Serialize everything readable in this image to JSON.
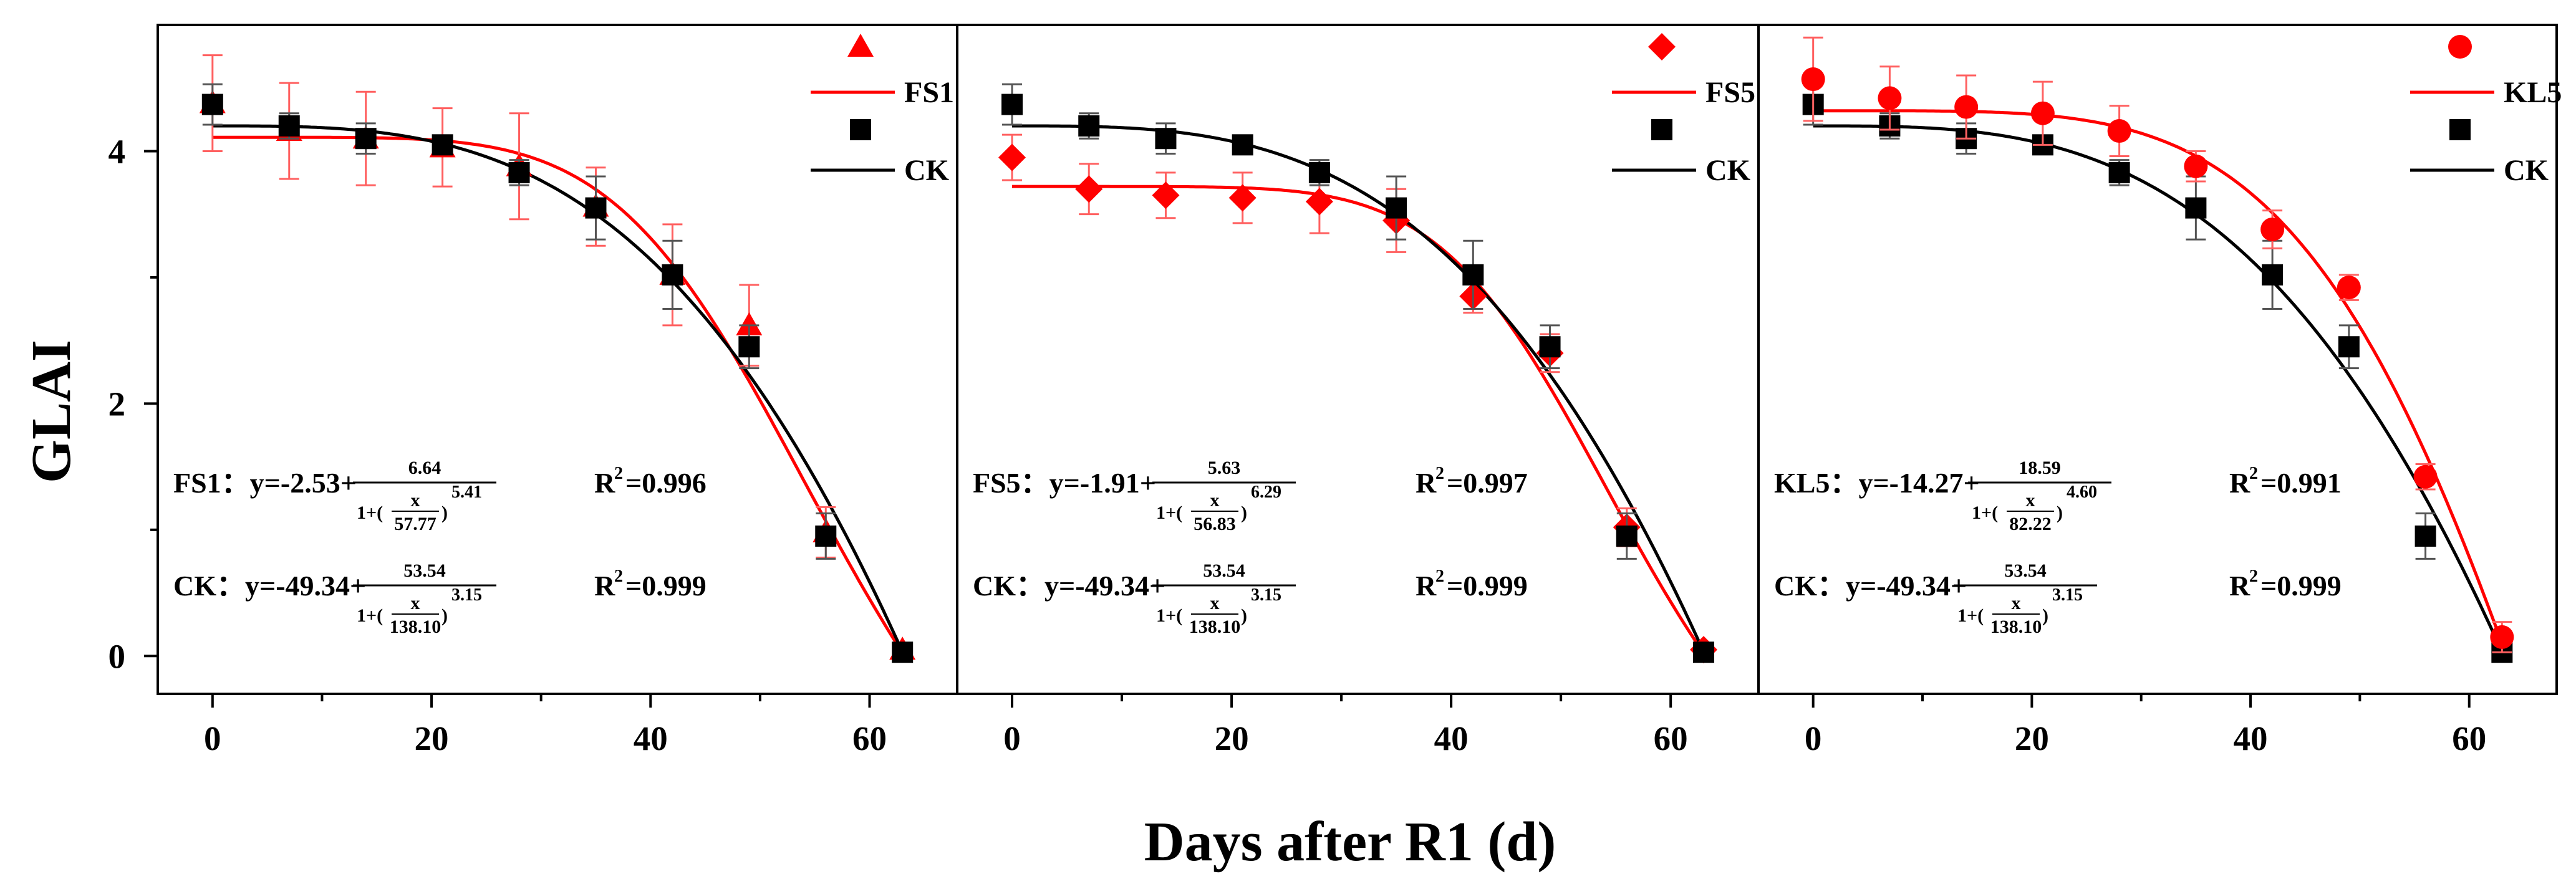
{
  "colors": {
    "treatment": "#ff0000",
    "ck": "#000000",
    "errorbar_treatment": "#ff6060",
    "errorbar_ck": "#555555"
  },
  "y_axis_label": "GLAI",
  "x_axis_label": "Days after R1 (d)",
  "chart_data": [
    {
      "type": "scatter",
      "panel": "FS1",
      "xlim": [
        -5,
        68
      ],
      "ylim": [
        -0.3,
        5.0
      ],
      "x_ticks": [
        "0",
        "20",
        "40",
        "60"
      ],
      "y_ticks": [
        "0",
        "2",
        "4"
      ],
      "legend_position": "top-right",
      "series": [
        {
          "name": "FS1",
          "marker": "triangle",
          "fit_line": "FS1",
          "x": [
            0,
            7,
            14,
            21,
            28,
            35,
            42,
            49,
            56,
            63
          ],
          "y": [
            4.38,
            4.16,
            4.1,
            4.03,
            3.88,
            3.56,
            3.02,
            2.62,
            0.98,
            0.05
          ],
          "err": [
            0.38,
            0.38,
            0.37,
            0.31,
            0.42,
            0.31,
            0.4,
            0.32,
            0.2,
            0.05
          ]
        },
        {
          "name": "CK",
          "marker": "square",
          "fit_line": "CK",
          "x": [
            0,
            7,
            14,
            21,
            28,
            35,
            42,
            49,
            56,
            63
          ],
          "y": [
            4.37,
            4.2,
            4.1,
            4.05,
            3.83,
            3.55,
            3.02,
            2.45,
            0.95,
            0.03
          ],
          "err": [
            0.16,
            0.1,
            0.12,
            0.06,
            0.1,
            0.25,
            0.27,
            0.17,
            0.18,
            0.03
          ]
        }
      ],
      "fits": [
        {
          "name": "FS1",
          "a": -2.53,
          "b": 6.64,
          "c": 57.77,
          "d": 5.41
        },
        {
          "name": "CK",
          "a": -49.34,
          "b": 53.54,
          "c": 138.1,
          "d": 3.15
        }
      ],
      "equations": [
        {
          "prefix": "FS1：y=-2.53+",
          "num": "6.64",
          "denom": "57.77",
          "exp": "5.41",
          "r2_label": "R",
          "r2_value": "=0.996"
        },
        {
          "prefix": "CK：y=-49.34+",
          "num": "53.54",
          "denom": "138.10",
          "exp": "3.15",
          "r2_label": "R",
          "r2_value": "=0.999"
        }
      ]
    },
    {
      "type": "scatter",
      "panel": "FS5",
      "xlim": [
        -5,
        68
      ],
      "ylim": [
        -0.3,
        5.0
      ],
      "x_ticks": [
        "0",
        "20",
        "40",
        "60"
      ],
      "y_ticks": [
        "0",
        "2",
        "4"
      ],
      "legend_position": "top-right",
      "series": [
        {
          "name": "FS5",
          "marker": "diamond",
          "fit_line": "FS5",
          "x": [
            0,
            7,
            14,
            21,
            28,
            35,
            42,
            49,
            56,
            63
          ],
          "y": [
            3.95,
            3.7,
            3.65,
            3.63,
            3.6,
            3.45,
            2.85,
            2.4,
            1.02,
            0.05
          ],
          "err": [
            0.18,
            0.2,
            0.18,
            0.2,
            0.25,
            0.25,
            0.13,
            0.15,
            0.15,
            0.05
          ]
        },
        {
          "name": "CK",
          "marker": "square",
          "fit_line": "CK",
          "x": [
            0,
            7,
            14,
            21,
            28,
            35,
            42,
            49,
            56,
            63
          ],
          "y": [
            4.37,
            4.2,
            4.1,
            4.05,
            3.83,
            3.55,
            3.02,
            2.45,
            0.95,
            0.03
          ],
          "err": [
            0.16,
            0.1,
            0.12,
            0.06,
            0.1,
            0.25,
            0.27,
            0.17,
            0.18,
            0.03
          ]
        }
      ],
      "fits": [
        {
          "name": "FS5",
          "a": -1.91,
          "b": 5.63,
          "c": 56.83,
          "d": 6.29
        },
        {
          "name": "CK",
          "a": -49.34,
          "b": 53.54,
          "c": 138.1,
          "d": 3.15
        }
      ],
      "equations": [
        {
          "prefix": "FS5：y=-1.91+",
          "num": "5.63",
          "denom": "56.83",
          "exp": "6.29",
          "r2_label": "R",
          "r2_value": "=0.997"
        },
        {
          "prefix": "CK：y=-49.34+",
          "num": "53.54",
          "denom": "138.10",
          "exp": "3.15",
          "r2_label": "R",
          "r2_value": "=0.999"
        }
      ]
    },
    {
      "type": "scatter",
      "panel": "KL5",
      "xlim": [
        -5,
        68
      ],
      "ylim": [
        -0.3,
        5.0
      ],
      "x_ticks": [
        "0",
        "20",
        "40",
        "60"
      ],
      "y_ticks": [
        "0",
        "2",
        "4"
      ],
      "legend_position": "top-right",
      "series": [
        {
          "name": "KL5",
          "marker": "circle",
          "fit_line": "KL5",
          "x": [
            0,
            7,
            14,
            21,
            28,
            35,
            42,
            49,
            56,
            63
          ],
          "y": [
            4.57,
            4.42,
            4.35,
            4.3,
            4.16,
            3.88,
            3.38,
            2.92,
            1.42,
            0.15
          ],
          "err": [
            0.33,
            0.25,
            0.25,
            0.25,
            0.2,
            0.12,
            0.15,
            0.1,
            0.1,
            0.12
          ]
        },
        {
          "name": "CK",
          "marker": "square",
          "fit_line": "CK",
          "x": [
            0,
            7,
            14,
            21,
            28,
            35,
            42,
            49,
            56,
            63
          ],
          "y": [
            4.37,
            4.2,
            4.1,
            4.05,
            3.83,
            3.55,
            3.02,
            2.45,
            0.95,
            0.03
          ],
          "err": [
            0.16,
            0.1,
            0.12,
            0.06,
            0.1,
            0.25,
            0.27,
            0.17,
            0.18,
            0.03
          ]
        }
      ],
      "fits": [
        {
          "name": "KL5",
          "a": -14.27,
          "b": 18.59,
          "c": 82.22,
          "d": 4.6
        },
        {
          "name": "CK",
          "a": -49.34,
          "b": 53.54,
          "c": 138.1,
          "d": 3.15
        }
      ],
      "equations": [
        {
          "prefix": "KL5：y=-14.27+",
          "num": "18.59",
          "denom": "82.22",
          "exp": "4.60",
          "r2_label": "R",
          "r2_value": "=0.991"
        },
        {
          "prefix": "CK：y=-49.34+",
          "num": "53.54",
          "denom": "138.10",
          "exp": "3.15",
          "r2_label": "R",
          "r2_value": "=0.999"
        }
      ]
    }
  ]
}
